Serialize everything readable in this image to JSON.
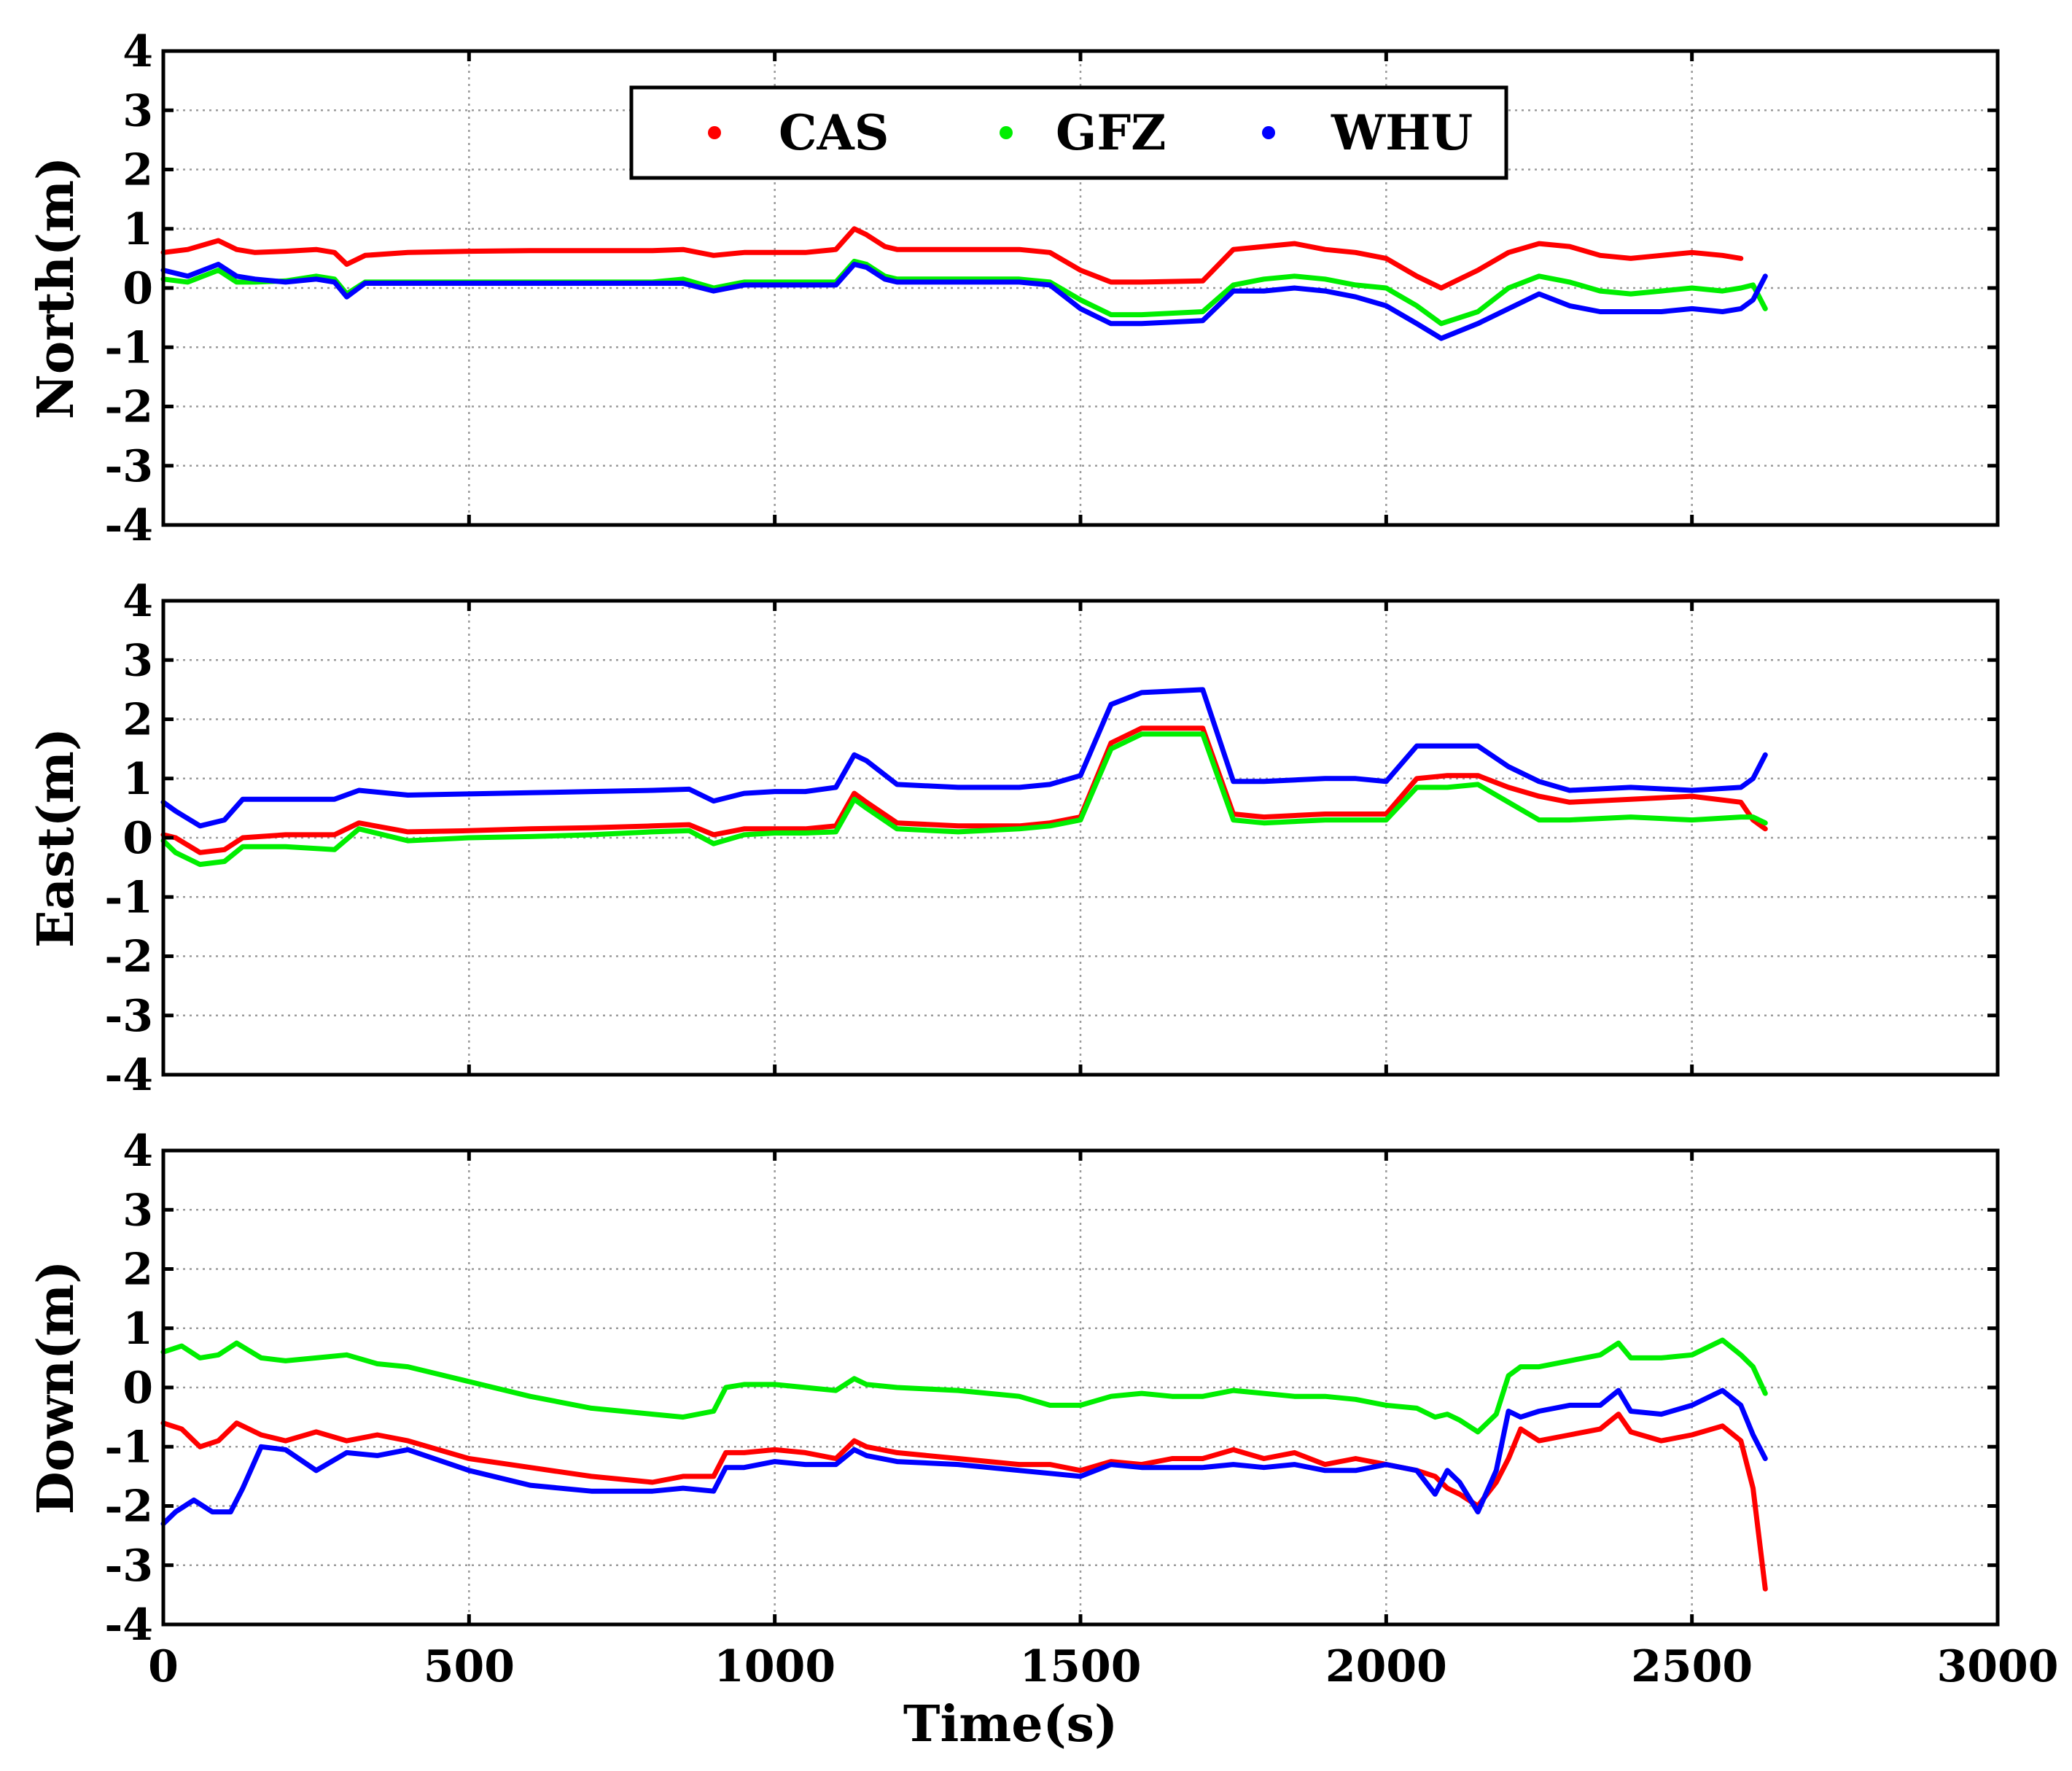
{
  "figure": {
    "xlabel": "Time(s)"
  },
  "legend": {
    "entries": [
      {
        "name": "CAS",
        "color": "#ff0000"
      },
      {
        "name": "GFZ",
        "color": "#00ee00"
      },
      {
        "name": "WHU",
        "color": "#0000ff"
      }
    ]
  },
  "chart_data": [
    {
      "type": "line",
      "title": "",
      "xlabel": "",
      "ylabel": "North(m)",
      "xlim": [
        0,
        3000
      ],
      "ylim": [
        -4,
        4
      ],
      "xticks": [
        0,
        500,
        1000,
        1500,
        2000,
        2500,
        3000
      ],
      "yticks": [
        -4,
        -3,
        -2,
        -1,
        0,
        1,
        2,
        3,
        4
      ],
      "grid": true,
      "legend_position": "top-center",
      "series": [
        {
          "name": "CAS",
          "color": "#ff0000",
          "x": [
            0,
            40,
            90,
            120,
            150,
            200,
            250,
            280,
            300,
            330,
            400,
            500,
            600,
            700,
            800,
            850,
            900,
            950,
            1000,
            1050,
            1100,
            1130,
            1150,
            1180,
            1200,
            1300,
            1400,
            1450,
            1500,
            1550,
            1600,
            1700,
            1750,
            1800,
            1850,
            1900,
            1950,
            2000,
            2050,
            2090,
            2150,
            2200,
            2250,
            2300,
            2350,
            2400,
            2450,
            2500,
            2550,
            2580
          ],
          "y": [
            0.6,
            0.65,
            0.8,
            0.65,
            0.6,
            0.62,
            0.65,
            0.6,
            0.4,
            0.55,
            0.6,
            0.62,
            0.63,
            0.63,
            0.63,
            0.65,
            0.55,
            0.6,
            0.6,
            0.6,
            0.65,
            1.0,
            0.9,
            0.7,
            0.65,
            0.65,
            0.65,
            0.6,
            0.3,
            0.1,
            0.1,
            0.12,
            0.65,
            0.7,
            0.75,
            0.65,
            0.6,
            0.5,
            0.2,
            0.0,
            0.3,
            0.6,
            0.75,
            0.7,
            0.55,
            0.5,
            0.55,
            0.6,
            0.55,
            0.5
          ]
        },
        {
          "name": "GFZ",
          "color": "#00ee00",
          "x": [
            0,
            40,
            90,
            120,
            150,
            200,
            250,
            280,
            300,
            330,
            400,
            500,
            600,
            700,
            800,
            850,
            900,
            950,
            1000,
            1050,
            1100,
            1130,
            1150,
            1180,
            1200,
            1300,
            1400,
            1450,
            1500,
            1550,
            1600,
            1700,
            1750,
            1800,
            1850,
            1900,
            1950,
            2000,
            2050,
            2090,
            2150,
            2200,
            2250,
            2300,
            2350,
            2400,
            2450,
            2500,
            2550,
            2580,
            2600,
            2620
          ],
          "y": [
            0.15,
            0.1,
            0.3,
            0.1,
            0.1,
            0.12,
            0.2,
            0.15,
            -0.1,
            0.1,
            0.1,
            0.1,
            0.1,
            0.1,
            0.1,
            0.15,
            0.0,
            0.1,
            0.1,
            0.1,
            0.1,
            0.45,
            0.4,
            0.2,
            0.15,
            0.15,
            0.15,
            0.1,
            -0.2,
            -0.45,
            -0.45,
            -0.4,
            0.05,
            0.15,
            0.2,
            0.15,
            0.05,
            0.0,
            -0.3,
            -0.6,
            -0.4,
            0.0,
            0.2,
            0.1,
            -0.05,
            -0.1,
            -0.05,
            0.0,
            -0.05,
            0.0,
            0.05,
            -0.35
          ]
        },
        {
          "name": "WHU",
          "color": "#0000ff",
          "x": [
            0,
            40,
            90,
            120,
            150,
            200,
            250,
            280,
            300,
            330,
            400,
            500,
            600,
            700,
            800,
            850,
            900,
            950,
            1000,
            1050,
            1100,
            1130,
            1150,
            1180,
            1200,
            1300,
            1400,
            1450,
            1500,
            1550,
            1600,
            1700,
            1750,
            1800,
            1850,
            1900,
            1950,
            2000,
            2050,
            2090,
            2150,
            2200,
            2250,
            2300,
            2350,
            2400,
            2450,
            2500,
            2550,
            2580,
            2600,
            2620
          ],
          "y": [
            0.3,
            0.2,
            0.4,
            0.2,
            0.15,
            0.1,
            0.15,
            0.1,
            -0.15,
            0.08,
            0.08,
            0.08,
            0.08,
            0.08,
            0.08,
            0.08,
            -0.05,
            0.05,
            0.05,
            0.05,
            0.05,
            0.4,
            0.35,
            0.15,
            0.1,
            0.1,
            0.1,
            0.05,
            -0.35,
            -0.6,
            -0.6,
            -0.55,
            -0.05,
            -0.05,
            0.0,
            -0.05,
            -0.15,
            -0.3,
            -0.6,
            -0.85,
            -0.6,
            -0.35,
            -0.1,
            -0.3,
            -0.4,
            -0.4,
            -0.4,
            -0.35,
            -0.4,
            -0.35,
            -0.2,
            0.2
          ]
        }
      ]
    },
    {
      "type": "line",
      "title": "",
      "xlabel": "",
      "ylabel": "East(m)",
      "xlim": [
        0,
        3000
      ],
      "ylim": [
        -4,
        4
      ],
      "xticks": [
        0,
        500,
        1000,
        1500,
        2000,
        2500,
        3000
      ],
      "yticks": [
        -4,
        -3,
        -2,
        -1,
        0,
        1,
        2,
        3,
        4
      ],
      "grid": true,
      "series": [
        {
          "name": "CAS",
          "color": "#ff0000",
          "x": [
            0,
            20,
            60,
            100,
            130,
            200,
            280,
            320,
            400,
            500,
            600,
            700,
            800,
            860,
            900,
            950,
            1000,
            1050,
            1100,
            1130,
            1150,
            1200,
            1300,
            1400,
            1450,
            1500,
            1550,
            1600,
            1700,
            1750,
            1800,
            1900,
            1950,
            2000,
            2050,
            2100,
            2150,
            2200,
            2250,
            2300,
            2400,
            2500,
            2580,
            2600,
            2620
          ],
          "y": [
            0.05,
            0.0,
            -0.25,
            -0.2,
            0.0,
            0.05,
            0.05,
            0.25,
            0.1,
            0.12,
            0.15,
            0.17,
            0.2,
            0.22,
            0.05,
            0.15,
            0.15,
            0.15,
            0.2,
            0.75,
            0.6,
            0.25,
            0.2,
            0.2,
            0.25,
            0.35,
            1.6,
            1.85,
            1.85,
            0.4,
            0.35,
            0.4,
            0.4,
            0.4,
            1.0,
            1.05,
            1.05,
            0.85,
            0.7,
            0.6,
            0.65,
            0.7,
            0.6,
            0.3,
            0.15
          ]
        },
        {
          "name": "GFZ",
          "color": "#00ee00",
          "x": [
            0,
            20,
            60,
            100,
            130,
            200,
            280,
            320,
            400,
            500,
            600,
            700,
            800,
            860,
            900,
            950,
            1000,
            1050,
            1100,
            1130,
            1150,
            1200,
            1300,
            1400,
            1450,
            1500,
            1550,
            1600,
            1700,
            1750,
            1800,
            1900,
            1950,
            2000,
            2050,
            2100,
            2150,
            2200,
            2250,
            2300,
            2400,
            2500,
            2580,
            2600,
            2620
          ],
          "y": [
            -0.05,
            -0.25,
            -0.45,
            -0.4,
            -0.15,
            -0.15,
            -0.2,
            0.15,
            -0.05,
            0.0,
            0.02,
            0.05,
            0.1,
            0.12,
            -0.1,
            0.05,
            0.08,
            0.08,
            0.1,
            0.65,
            0.5,
            0.15,
            0.1,
            0.15,
            0.2,
            0.3,
            1.5,
            1.75,
            1.75,
            0.3,
            0.25,
            0.3,
            0.3,
            0.3,
            0.85,
            0.85,
            0.9,
            0.6,
            0.3,
            0.3,
            0.35,
            0.3,
            0.35,
            0.35,
            0.25
          ]
        },
        {
          "name": "WHU",
          "color": "#0000ff",
          "x": [
            0,
            20,
            60,
            100,
            130,
            200,
            280,
            320,
            400,
            500,
            600,
            700,
            800,
            860,
            900,
            950,
            1000,
            1050,
            1100,
            1130,
            1150,
            1200,
            1300,
            1400,
            1450,
            1500,
            1550,
            1600,
            1700,
            1750,
            1800,
            1900,
            1950,
            2000,
            2050,
            2100,
            2150,
            2200,
            2250,
            2300,
            2400,
            2500,
            2580,
            2600,
            2620
          ],
          "y": [
            0.6,
            0.45,
            0.2,
            0.3,
            0.65,
            0.65,
            0.65,
            0.8,
            0.72,
            0.74,
            0.76,
            0.78,
            0.8,
            0.82,
            0.62,
            0.75,
            0.78,
            0.78,
            0.85,
            1.4,
            1.3,
            0.9,
            0.85,
            0.85,
            0.9,
            1.05,
            2.25,
            2.45,
            2.5,
            0.95,
            0.95,
            1.0,
            1.0,
            0.95,
            1.55,
            1.55,
            1.55,
            1.2,
            0.95,
            0.8,
            0.85,
            0.8,
            0.85,
            1.0,
            1.4
          ]
        }
      ]
    },
    {
      "type": "line",
      "title": "",
      "xlabel": "Time(s)",
      "ylabel": "Down(m)",
      "xlim": [
        0,
        3000
      ],
      "ylim": [
        -4,
        4
      ],
      "xticks": [
        0,
        500,
        1000,
        1500,
        2000,
        2500,
        3000
      ],
      "yticks": [
        -4,
        -3,
        -2,
        -1,
        0,
        1,
        2,
        3,
        4
      ],
      "grid": true,
      "series": [
        {
          "name": "CAS",
          "color": "#ff0000",
          "x": [
            0,
            30,
            60,
            90,
            120,
            160,
            200,
            250,
            300,
            350,
            400,
            500,
            600,
            700,
            800,
            850,
            900,
            920,
            950,
            1000,
            1050,
            1100,
            1130,
            1150,
            1200,
            1300,
            1400,
            1450,
            1500,
            1550,
            1600,
            1650,
            1700,
            1750,
            1800,
            1850,
            1900,
            1950,
            2000,
            2050,
            2080,
            2100,
            2120,
            2150,
            2180,
            2200,
            2220,
            2250,
            2300,
            2350,
            2380,
            2400,
            2450,
            2500,
            2550,
            2580,
            2600,
            2620
          ],
          "y": [
            -0.6,
            -0.7,
            -1.0,
            -0.9,
            -0.6,
            -0.8,
            -0.9,
            -0.75,
            -0.9,
            -0.8,
            -0.9,
            -1.2,
            -1.35,
            -1.5,
            -1.6,
            -1.5,
            -1.5,
            -1.1,
            -1.1,
            -1.05,
            -1.1,
            -1.2,
            -0.9,
            -1.0,
            -1.1,
            -1.2,
            -1.3,
            -1.3,
            -1.4,
            -1.25,
            -1.3,
            -1.2,
            -1.2,
            -1.05,
            -1.2,
            -1.1,
            -1.3,
            -1.2,
            -1.3,
            -1.4,
            -1.5,
            -1.7,
            -1.8,
            -2.0,
            -1.6,
            -1.2,
            -0.7,
            -0.9,
            -0.8,
            -0.7,
            -0.45,
            -0.75,
            -0.9,
            -0.8,
            -0.65,
            -0.9,
            -1.7,
            -3.4
          ]
        },
        {
          "name": "GFZ",
          "color": "#00ee00",
          "x": [
            0,
            30,
            60,
            90,
            120,
            160,
            200,
            250,
            300,
            350,
            400,
            500,
            600,
            700,
            800,
            850,
            900,
            920,
            950,
            1000,
            1050,
            1100,
            1130,
            1150,
            1200,
            1300,
            1400,
            1450,
            1500,
            1550,
            1600,
            1650,
            1700,
            1750,
            1800,
            1850,
            1900,
            1950,
            2000,
            2050,
            2080,
            2100,
            2120,
            2150,
            2180,
            2200,
            2220,
            2250,
            2300,
            2350,
            2380,
            2400,
            2450,
            2500,
            2550,
            2580,
            2600,
            2620
          ],
          "y": [
            0.6,
            0.7,
            0.5,
            0.55,
            0.75,
            0.5,
            0.45,
            0.5,
            0.55,
            0.4,
            0.35,
            0.1,
            -0.15,
            -0.35,
            -0.45,
            -0.5,
            -0.4,
            0.0,
            0.05,
            0.05,
            0.0,
            -0.05,
            0.15,
            0.05,
            0.0,
            -0.05,
            -0.15,
            -0.3,
            -0.3,
            -0.15,
            -0.1,
            -0.15,
            -0.15,
            -0.05,
            -0.1,
            -0.15,
            -0.15,
            -0.2,
            -0.3,
            -0.35,
            -0.5,
            -0.45,
            -0.55,
            -0.75,
            -0.45,
            0.2,
            0.35,
            0.35,
            0.45,
            0.55,
            0.75,
            0.5,
            0.5,
            0.55,
            0.8,
            0.55,
            0.35,
            -0.1
          ]
        },
        {
          "name": "WHU",
          "color": "#0000ff",
          "x": [
            0,
            20,
            50,
            80,
            110,
            130,
            160,
            200,
            250,
            300,
            350,
            400,
            500,
            600,
            700,
            800,
            850,
            900,
            920,
            950,
            1000,
            1050,
            1100,
            1130,
            1150,
            1200,
            1300,
            1400,
            1450,
            1500,
            1550,
            1600,
            1650,
            1700,
            1750,
            1800,
            1850,
            1900,
            1950,
            2000,
            2050,
            2080,
            2100,
            2120,
            2150,
            2180,
            2200,
            2220,
            2250,
            2300,
            2350,
            2380,
            2400,
            2450,
            2500,
            2550,
            2580,
            2600,
            2620
          ],
          "y": [
            -2.3,
            -2.1,
            -1.9,
            -2.1,
            -2.1,
            -1.7,
            -1.0,
            -1.05,
            -1.4,
            -1.1,
            -1.15,
            -1.05,
            -1.4,
            -1.65,
            -1.75,
            -1.75,
            -1.7,
            -1.75,
            -1.35,
            -1.35,
            -1.25,
            -1.3,
            -1.3,
            -1.05,
            -1.15,
            -1.25,
            -1.3,
            -1.4,
            -1.45,
            -1.5,
            -1.3,
            -1.35,
            -1.35,
            -1.35,
            -1.3,
            -1.35,
            -1.3,
            -1.4,
            -1.4,
            -1.3,
            -1.4,
            -1.8,
            -1.4,
            -1.6,
            -2.1,
            -1.4,
            -0.4,
            -0.5,
            -0.4,
            -0.3,
            -0.3,
            -0.05,
            -0.4,
            -0.45,
            -0.3,
            -0.05,
            -0.3,
            -0.8,
            -1.2
          ]
        }
      ]
    }
  ]
}
